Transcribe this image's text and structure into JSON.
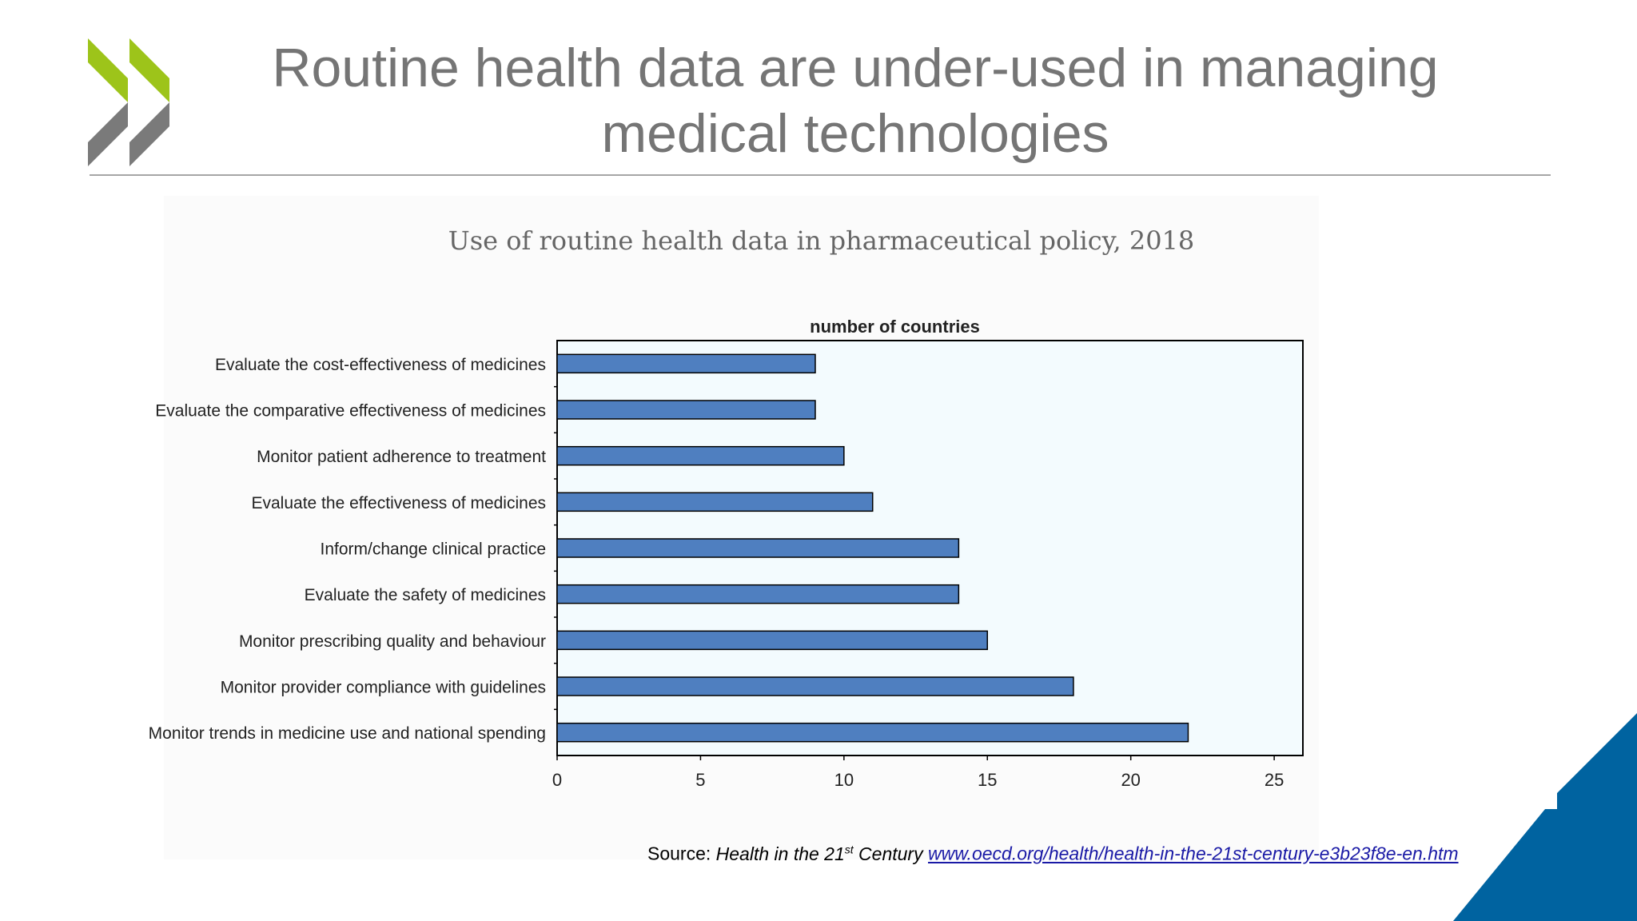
{
  "slide": {
    "title_line1": "Routine health data are under-used in managing",
    "title_line2": "medical technologies",
    "chart_title": "Use of routine health data in pharmaceutical policy, 2018"
  },
  "source": {
    "label": "Source: ",
    "publication_pre": "Health in the 21",
    "publication_sup": "st",
    "publication_post": " Century",
    "link_text": "www.oecd.org/health/health-in-the-21st-century-e3b23f8e-en.htm"
  },
  "colors": {
    "bar": "#4f7fc0",
    "plot_bg": "#f3fbfe",
    "logo_green": "#9dc41a",
    "logo_gray": "#7a7a7a",
    "corner_blue": "#0063a0"
  },
  "logo": {
    "name": "oecd-chevron-logo"
  },
  "chart_data": {
    "type": "bar",
    "orientation": "horizontal",
    "xlabel": "number of countries",
    "xlim": [
      0,
      26
    ],
    "xticks": [
      0,
      5,
      10,
      15,
      20,
      25
    ],
    "grid": false,
    "categories": [
      "Evaluate the cost-effectiveness of medicines",
      "Evaluate the comparative effectiveness of medicines",
      "Monitor patient adherence to treatment",
      "Evaluate the effectiveness of medicines",
      "Inform/change clinical practice",
      "Evaluate the safety of medicines",
      "Monitor prescribing quality and behaviour",
      "Monitor provider compliance with guidelines",
      "Monitor trends in medicine use and national spending"
    ],
    "values": [
      9,
      9,
      10,
      11,
      14,
      14,
      15,
      18,
      22
    ]
  }
}
